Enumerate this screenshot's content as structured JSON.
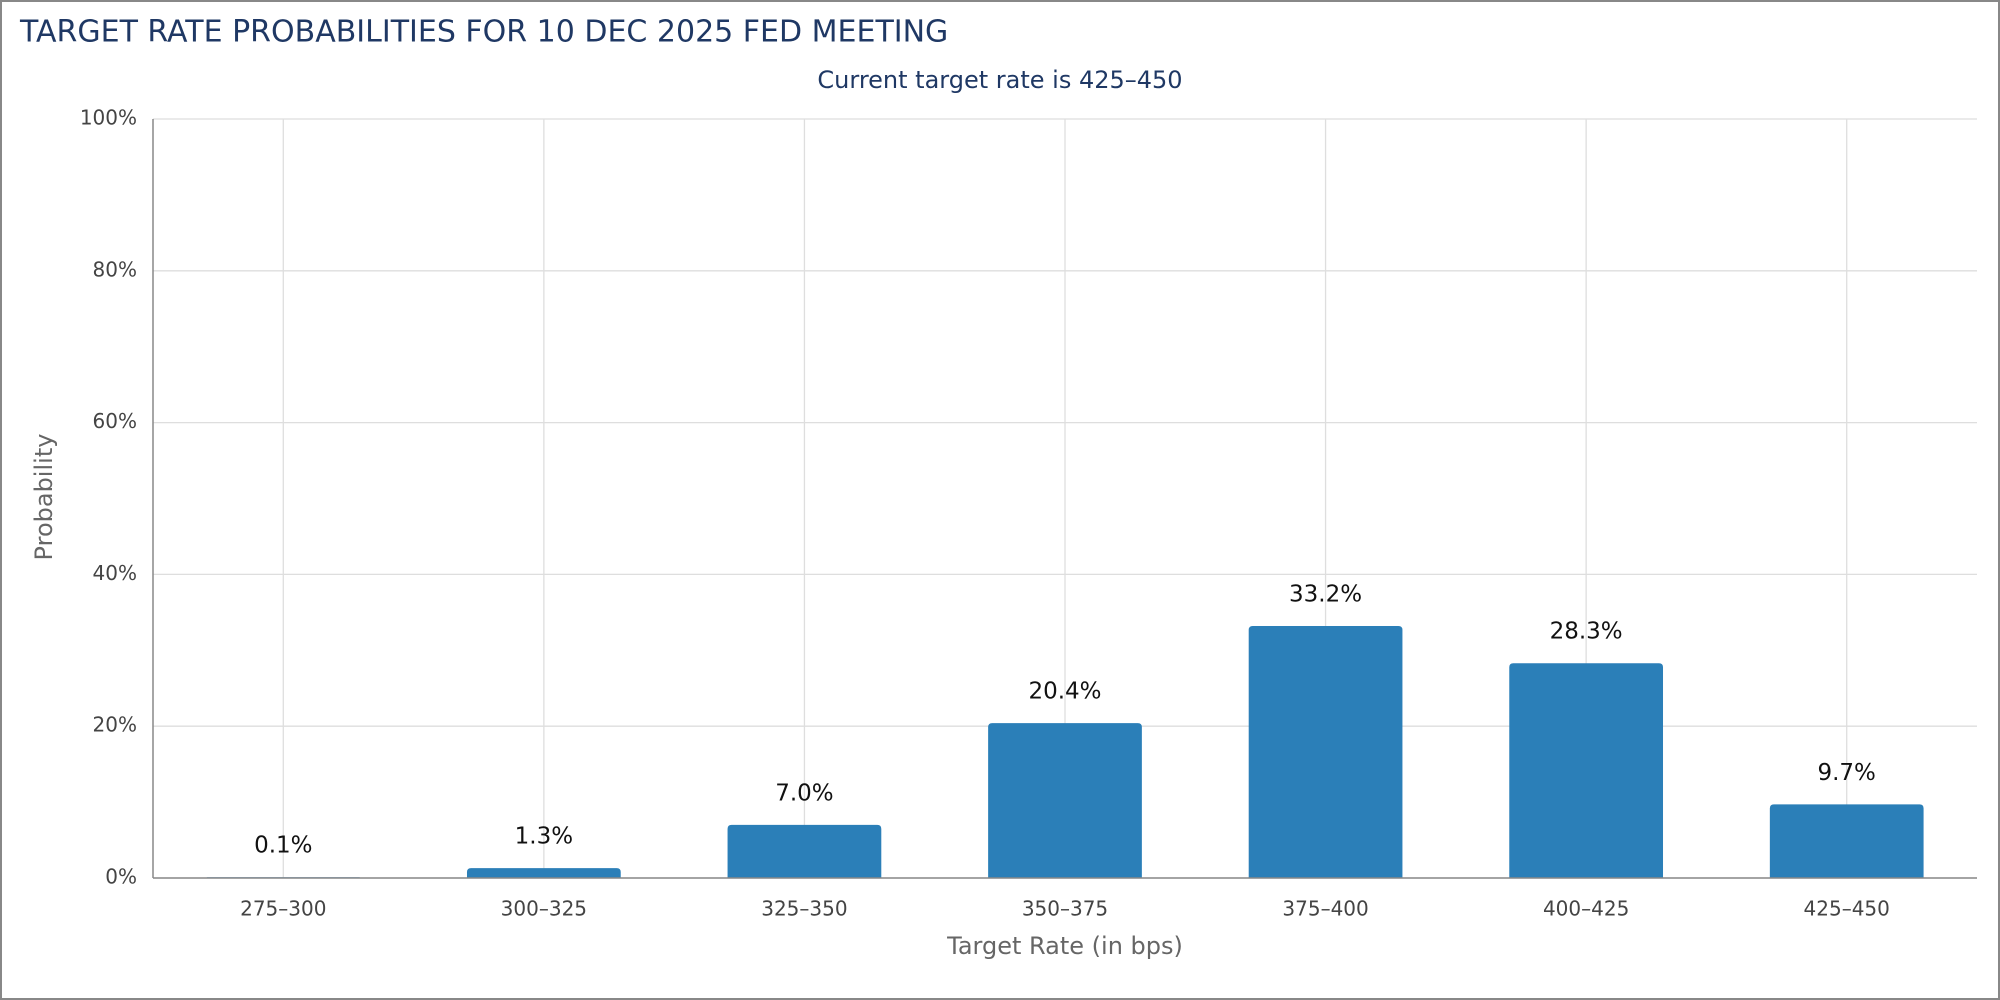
{
  "chart_data": {
    "type": "bar",
    "title": "TARGET RATE PROBABILITIES FOR 10 DEC 2025 FED MEETING",
    "subtitle": "Current target rate is 425–450",
    "x_label": "Target Rate (in bps)",
    "y_label": "Probability",
    "categories": [
      "275–300",
      "300–325",
      "325–350",
      "350–375",
      "375–400",
      "400–425",
      "425–450"
    ],
    "values": [
      0.1,
      1.3,
      7.0,
      20.4,
      33.2,
      28.3,
      9.7
    ],
    "value_labels": [
      "0.1%",
      "1.3%",
      "7.0%",
      "20.4%",
      "33.2%",
      "28.3%",
      "9.7%"
    ],
    "color": "#2b7fb8",
    "ylim": [
      0,
      100
    ],
    "yticks": [
      {
        "value": 0,
        "label": "0%"
      },
      {
        "value": 20,
        "label": "20%"
      },
      {
        "value": 40,
        "label": "40%"
      },
      {
        "value": 60,
        "label": "60%"
      },
      {
        "value": 80,
        "label": "80%"
      },
      {
        "value": 100,
        "label": "100%"
      }
    ],
    "grid": true
  }
}
